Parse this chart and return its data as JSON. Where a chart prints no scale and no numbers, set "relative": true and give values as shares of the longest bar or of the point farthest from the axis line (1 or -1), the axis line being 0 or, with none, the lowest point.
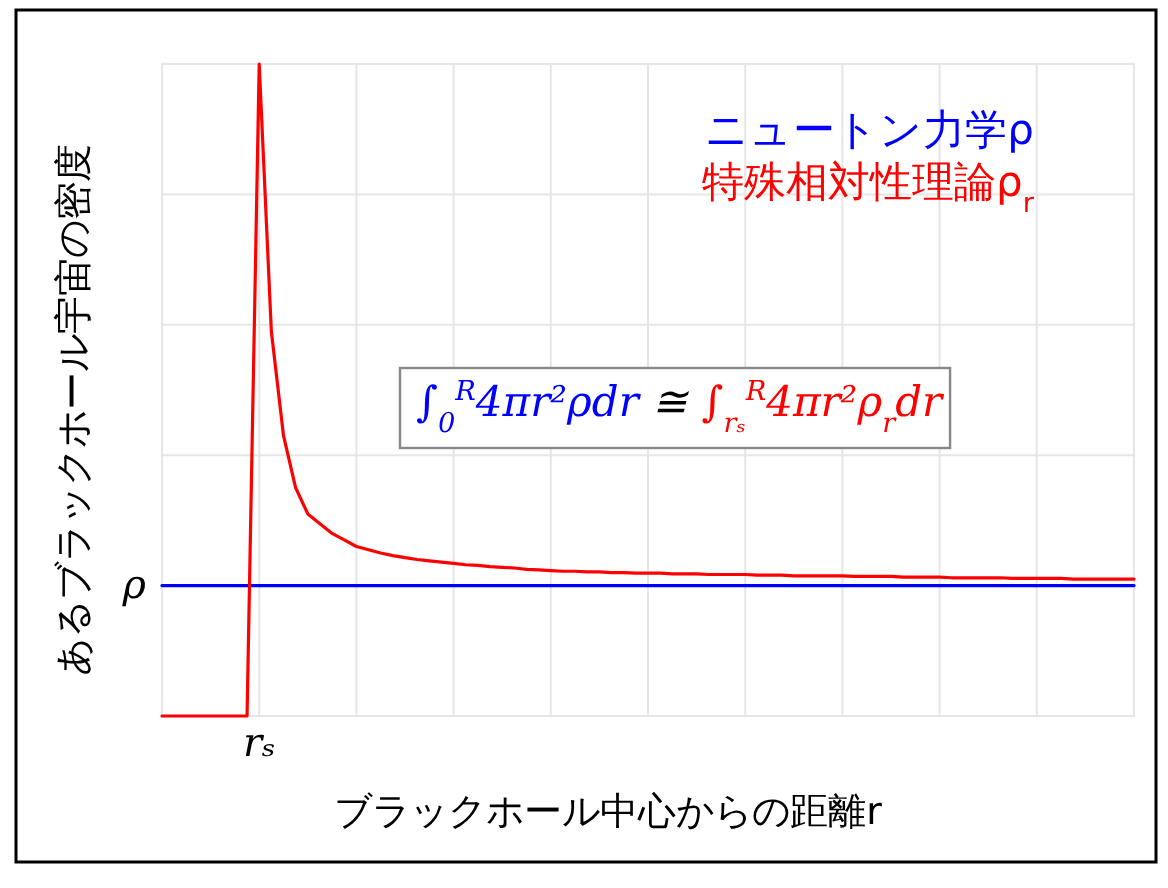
{
  "chart_data": {
    "type": "line",
    "relative": true,
    "xlabel": "ブラックホール中心からの距離r",
    "ylabel": "あるブラックホール宇宙の密度",
    "categories": [
      null,
      null,
      null,
      null,
      null,
      null,
      null,
      null,
      null,
      null,
      null,
      null,
      null,
      null,
      null,
      null,
      null,
      null,
      null,
      null,
      null,
      null,
      null,
      null,
      null,
      null,
      null,
      null,
      null,
      null,
      null,
      null,
      null,
      null,
      null,
      null,
      null,
      null,
      null,
      null,
      null,
      null,
      null,
      null,
      null,
      null,
      null,
      null,
      null,
      null,
      null,
      null,
      null,
      null,
      null,
      null,
      null,
      null,
      null,
      null,
      null,
      null,
      null,
      null,
      null,
      null,
      null,
      null,
      null,
      null,
      null,
      null,
      null,
      null,
      null,
      null,
      null,
      null,
      null,
      null,
      null
    ],
    "grid": true,
    "series": [
      {
        "name": "ニュートン力学ρ",
        "color": "#0000ff",
        "values": [
          0.2,
          0.2,
          0.2,
          0.2,
          0.2,
          0.2,
          0.2,
          0.2,
          0.2,
          0.2,
          0.2,
          0.2,
          0.2,
          0.2,
          0.2,
          0.2,
          0.2,
          0.2,
          0.2,
          0.2,
          0.2,
          0.2,
          0.2,
          0.2,
          0.2,
          0.2,
          0.2,
          0.2,
          0.2,
          0.2,
          0.2,
          0.2,
          0.2,
          0.2,
          0.2,
          0.2,
          0.2,
          0.2,
          0.2,
          0.2,
          0.2,
          0.2,
          0.2,
          0.2,
          0.2,
          0.2,
          0.2,
          0.2,
          0.2,
          0.2,
          0.2,
          0.2,
          0.2,
          0.2,
          0.2,
          0.2,
          0.2,
          0.2,
          0.2,
          0.2,
          0.2,
          0.2,
          0.2,
          0.2,
          0.2,
          0.2,
          0.2,
          0.2,
          0.2,
          0.2,
          0.2,
          0.2,
          0.2,
          0.2,
          0.2,
          0.2,
          0.2,
          0.2,
          0.2,
          0.2,
          0.2
        ]
      },
      {
        "name": "特殊相対性理論ρ$_{r}$",
        "color": "#ff0000",
        "values": [
          0,
          0,
          0,
          0,
          0,
          0,
          0,
          0,
          1,
          0.59,
          0.43,
          0.35,
          0.31,
          0.295,
          0.28,
          0.27,
          0.26,
          0.255,
          0.25,
          0.246,
          0.243,
          0.24,
          0.238,
          0.236,
          0.234,
          0.232,
          0.231,
          0.229,
          0.228,
          0.227,
          0.225,
          0.224,
          0.223,
          0.222,
          0.222,
          0.221,
          0.221,
          0.22,
          0.22,
          0.219,
          0.219,
          0.219,
          0.218,
          0.218,
          0.218,
          0.217,
          0.217,
          0.217,
          0.217,
          0.216,
          0.216,
          0.216,
          0.215,
          0.215,
          0.215,
          0.215,
          0.215,
          0.214,
          0.214,
          0.214,
          0.214,
          0.213,
          0.213,
          0.213,
          0.213,
          0.212,
          0.212,
          0.212,
          0.212,
          0.212,
          0.211,
          0.211,
          0.211,
          0.211,
          0.211,
          0.21,
          0.21,
          0.21,
          0.21,
          0.21,
          0.21
        ]
      }
    ],
    "annotations": [
      "ρ",
      "rₛ",
      "∫$_{0}$$^{R}$4πr²ρdr",
      "≅",
      "∫$_{rₛ}$$^{R}$4πr²ρ$_{r}$dr"
    ]
  }
}
